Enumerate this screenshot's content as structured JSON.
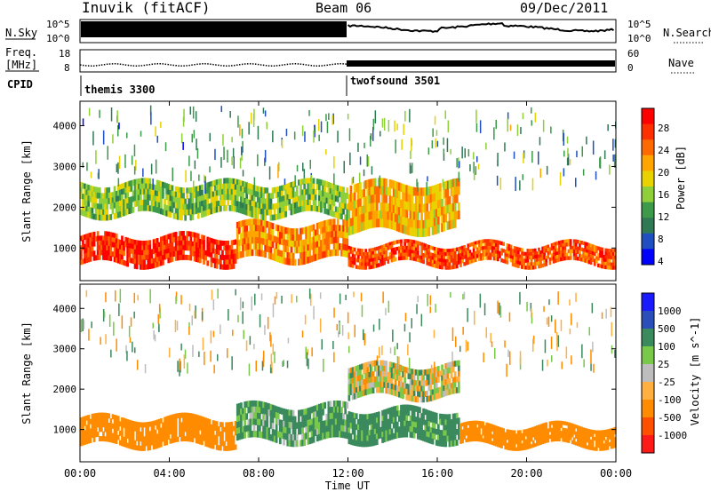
{
  "header": {
    "radar": "Inuvik (fitACF)",
    "beam": "Beam 06",
    "date": "09/Dec/2011"
  },
  "noise_panel": {
    "left_label": "N.Sky",
    "left_ticks": [
      "10^5",
      "10^0"
    ],
    "right_label": "N.Search",
    "right_ticks": [
      "10^5",
      "10^0"
    ]
  },
  "freq_panel": {
    "left_label_1": "Freq.",
    "left_label_2": "[MHz]",
    "left_ticks": [
      "18",
      "8"
    ],
    "right_label": "Nave",
    "right_ticks": [
      "60",
      "0"
    ]
  },
  "cpid": {
    "label": "CPID",
    "segments": [
      {
        "name": "themis 3300",
        "start_hour": 0
      },
      {
        "name": "twofsound 3501",
        "start_hour": 12
      }
    ]
  },
  "x_axis": {
    "label": "Time UT",
    "ticks": [
      "00:00",
      "04:00",
      "08:00",
      "12:00",
      "16:00",
      "20:00",
      "00:00"
    ]
  },
  "colors": {
    "power_scale": [
      "#0000ff",
      "#1f4fc0",
      "#2f7a55",
      "#3c9a4a",
      "#8fcf3a",
      "#e8d200",
      "#ffa500",
      "#ff6a00",
      "#ff3000",
      "#ff0000"
    ],
    "velocity_scale": [
      "#1a1aff",
      "#2a4fb8",
      "#3a8a5e",
      "#7ac84a",
      "#bdbdbd",
      "#ffb040",
      "#ff8c00",
      "#ff5000",
      "#ff1a1a"
    ]
  },
  "chart_data": [
    {
      "type": "heatmap",
      "panel": "power",
      "xlabel": "Time UT",
      "ylabel": "Slant Range [km]",
      "xlim": [
        0,
        24
      ],
      "ylim": [
        200,
        4600
      ],
      "yticks": [
        1000,
        2000,
        3000,
        4000
      ],
      "colorbar_label": "Power [dB]",
      "colorbar_ticks": [
        "4",
        "8",
        "12",
        "16",
        "20",
        "24",
        "28"
      ],
      "colorbar_range": [
        0,
        32
      ],
      "dominant_echo_bands": [
        {
          "hours": [
            0,
            7
          ],
          "range_km": [
            600,
            1300
          ],
          "value": 28
        },
        {
          "hours": [
            7,
            12
          ],
          "range_km": [
            700,
            1600
          ],
          "value": 22
        },
        {
          "hours": [
            12,
            24
          ],
          "range_km": [
            600,
            1100
          ],
          "value": 26
        },
        {
          "hours": [
            0,
            12
          ],
          "range_km": [
            1800,
            2600
          ],
          "value": 14
        },
        {
          "hours": [
            12,
            17
          ],
          "range_km": [
            1400,
            2600
          ],
          "value": 20
        }
      ]
    },
    {
      "type": "heatmap",
      "panel": "velocity",
      "xlabel": "Time UT",
      "ylabel": "Slant Range [km]",
      "xlim": [
        0,
        24
      ],
      "ylim": [
        200,
        4600
      ],
      "yticks": [
        1000,
        2000,
        3000,
        4000
      ],
      "colorbar_label": "Velocity [m s^-1]",
      "colorbar_ticks": [
        "1000",
        "500",
        "100",
        "25",
        "-25",
        "-100",
        "-500",
        "-1000"
      ],
      "dominant_echo_bands": [
        {
          "hours": [
            0,
            7
          ],
          "range_km": [
            600,
            1300
          ],
          "value": -300
        },
        {
          "hours": [
            7,
            12
          ],
          "range_km": [
            700,
            1600
          ],
          "value": 150
        },
        {
          "hours": [
            12,
            17
          ],
          "range_km": [
            700,
            1500
          ],
          "value": 200
        },
        {
          "hours": [
            17,
            24
          ],
          "range_km": [
            600,
            1100
          ],
          "value": -250
        },
        {
          "hours": [
            12,
            17
          ],
          "range_km": [
            1800,
            2600
          ],
          "value": 0
        }
      ]
    }
  ]
}
